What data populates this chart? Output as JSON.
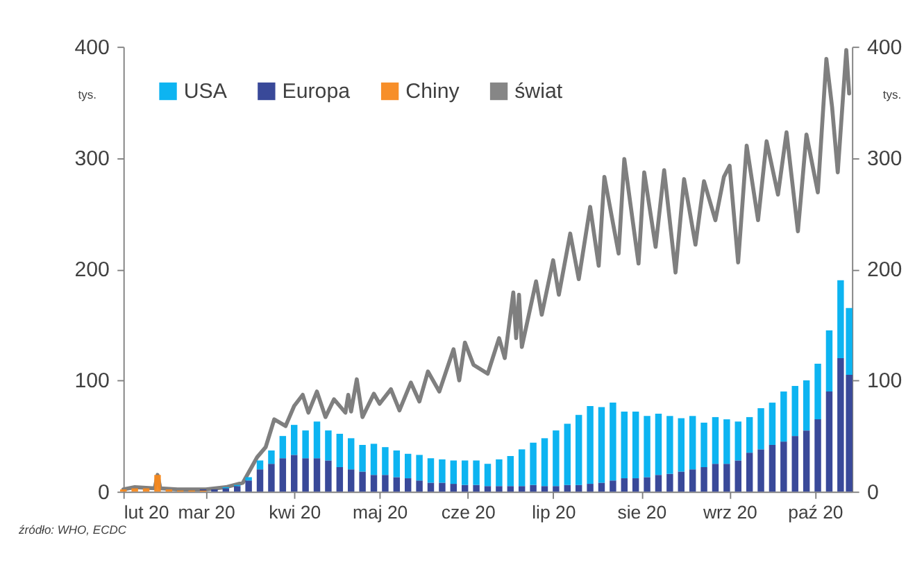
{
  "chart_data": {
    "type": "bar",
    "stacked": true,
    "ylabel": "tys.",
    "y2label": "tys.",
    "x": [
      "2020-02-01",
      "2020-02-05",
      "2020-02-09",
      "2020-02-13",
      "2020-02-17",
      "2020-02-21",
      "2020-02-25",
      "2020-02-29",
      "2020-03-04",
      "2020-03-08",
      "2020-03-12",
      "2020-03-16",
      "2020-03-20",
      "2020-03-24",
      "2020-03-28",
      "2020-04-01",
      "2020-04-05",
      "2020-04-09",
      "2020-04-13",
      "2020-04-17",
      "2020-04-21",
      "2020-04-25",
      "2020-04-29",
      "2020-05-03",
      "2020-05-07",
      "2020-05-11",
      "2020-05-15",
      "2020-05-19",
      "2020-05-23",
      "2020-05-27",
      "2020-05-31",
      "2020-06-04",
      "2020-06-08",
      "2020-06-12",
      "2020-06-16",
      "2020-06-20",
      "2020-06-24",
      "2020-06-28",
      "2020-07-02",
      "2020-07-06",
      "2020-07-10",
      "2020-07-14",
      "2020-07-18",
      "2020-07-22",
      "2020-07-26",
      "2020-07-30",
      "2020-08-03",
      "2020-08-07",
      "2020-08-11",
      "2020-08-15",
      "2020-08-19",
      "2020-08-23",
      "2020-08-27",
      "2020-08-31",
      "2020-09-04",
      "2020-09-08",
      "2020-09-12",
      "2020-09-16",
      "2020-09-20",
      "2020-09-24",
      "2020-09-28",
      "2020-10-02",
      "2020-10-06",
      "2020-10-10",
      "2020-10-13"
    ],
    "series": [
      {
        "name": "Chiny",
        "color": "#f7891f",
        "values": [
          2,
          3,
          3,
          15,
          2,
          1,
          1,
          1,
          null,
          null,
          null,
          null,
          null,
          null,
          null,
          null,
          null,
          null,
          null,
          null,
          null,
          null,
          null,
          null,
          null,
          null,
          null,
          null,
          null,
          null,
          null,
          null,
          null,
          null,
          null,
          null,
          null,
          null,
          null,
          null,
          null,
          null,
          null,
          null,
          null,
          null,
          null,
          null,
          null,
          null,
          null,
          null,
          null,
          null,
          null,
          null,
          null,
          null,
          null,
          null,
          null,
          null,
          null,
          null,
          null
        ]
      },
      {
        "name": "Europa",
        "color": "#2e3f93",
        "values": [
          0,
          0,
          0,
          0,
          0,
          0,
          0,
          1,
          2,
          3,
          5,
          10,
          20,
          25,
          30,
          33,
          30,
          30,
          28,
          22,
          20,
          18,
          15,
          15,
          13,
          12,
          10,
          8,
          8,
          7,
          6,
          6,
          5,
          5,
          5,
          5,
          6,
          5,
          5,
          6,
          6,
          7,
          8,
          10,
          12,
          12,
          13,
          15,
          16,
          18,
          20,
          22,
          25,
          25,
          28,
          35,
          38,
          42,
          45,
          50,
          55,
          65,
          90,
          120,
          105
        ]
      },
      {
        "name": "USA",
        "color": "#00b0f0",
        "values": [
          0,
          0,
          0,
          0,
          0,
          0,
          0,
          0,
          0,
          1,
          1,
          3,
          8,
          12,
          20,
          27,
          25,
          33,
          27,
          30,
          28,
          24,
          28,
          25,
          24,
          22,
          23,
          22,
          21,
          21,
          22,
          22,
          20,
          24,
          27,
          33,
          38,
          43,
          50,
          55,
          63,
          70,
          68,
          70,
          60,
          60,
          55,
          55,
          52,
          48,
          48,
          40,
          42,
          40,
          35,
          32,
          37,
          38,
          45,
          45,
          45,
          50,
          55,
          70,
          60
        ]
      },
      {
        "name": "świat",
        "type": "line",
        "axis": "y2",
        "color": "#7f7f7f",
        "x": [
          "2020-02-01",
          "2020-02-05",
          "2020-02-12",
          "2020-02-13",
          "2020-02-14",
          "2020-02-20",
          "2020-03-01",
          "2020-03-08",
          "2020-03-14",
          "2020-03-19",
          "2020-03-22",
          "2020-03-25",
          "2020-03-29",
          "2020-04-01",
          "2020-04-04",
          "2020-04-06",
          "2020-04-09",
          "2020-04-12",
          "2020-04-15",
          "2020-04-19",
          "2020-04-20",
          "2020-04-21",
          "2020-04-23",
          "2020-04-25",
          "2020-04-29",
          "2020-05-01",
          "2020-05-05",
          "2020-05-08",
          "2020-05-12",
          "2020-05-15",
          "2020-05-18",
          "2020-05-22",
          "2020-05-27",
          "2020-05-29",
          "2020-05-31",
          "2020-06-03",
          "2020-06-08",
          "2020-06-12",
          "2020-06-14",
          "2020-06-17",
          "2020-06-18",
          "2020-06-19",
          "2020-06-20",
          "2020-06-25",
          "2020-06-27",
          "2020-07-01",
          "2020-07-03",
          "2020-07-07",
          "2020-07-10",
          "2020-07-14",
          "2020-07-17",
          "2020-07-19",
          "2020-07-24",
          "2020-07-26",
          "2020-07-31",
          "2020-08-02",
          "2020-08-06",
          "2020-08-09",
          "2020-08-13",
          "2020-08-16",
          "2020-08-20",
          "2020-08-23",
          "2020-08-27",
          "2020-08-30",
          "2020-09-01",
          "2020-09-04",
          "2020-09-07",
          "2020-09-11",
          "2020-09-14",
          "2020-09-18",
          "2020-09-21",
          "2020-09-25",
          "2020-09-28",
          "2020-10-02",
          "2020-10-05",
          "2020-10-07",
          "2020-10-09",
          "2020-10-12",
          "2020-10-13"
        ],
        "values": [
          2,
          4,
          3,
          15,
          3,
          2,
          2,
          4,
          8,
          31,
          40,
          65,
          59,
          77,
          87,
          71,
          90,
          67,
          83,
          71,
          87,
          72,
          101,
          67,
          88,
          79,
          92,
          73,
          98,
          81,
          108,
          90,
          128,
          100,
          134,
          114,
          106,
          138,
          120,
          179,
          138,
          177,
          130,
          189,
          159,
          208,
          177,
          232,
          191,
          256,
          203,
          283,
          214,
          299,
          205,
          287,
          220,
          289,
          197,
          281,
          222,
          279,
          244,
          283,
          293,
          206,
          311,
          244,
          315,
          267,
          323,
          234,
          321,
          269,
          389,
          346,
          287,
          397,
          358
        ]
      }
    ],
    "xlim": [
      "2020-02-01",
      "2020-10-14"
    ],
    "xticks": [
      {
        "value": "2020-02-01",
        "label": "lut 20"
      },
      {
        "value": "2020-03-01",
        "label": "mar 20"
      },
      {
        "value": "2020-04-01",
        "label": "kwi 20"
      },
      {
        "value": "2020-05-01",
        "label": "maj 20"
      },
      {
        "value": "2020-06-01",
        "label": "cze 20"
      },
      {
        "value": "2020-07-01",
        "label": "lip 20"
      },
      {
        "value": "2020-08-01",
        "label": "sie 20"
      },
      {
        "value": "2020-09-01",
        "label": "wrz 20"
      },
      {
        "value": "2020-10-01",
        "label": "paź 20"
      }
    ],
    "ylim": [
      0,
      400
    ],
    "yticks": [
      0,
      100,
      200,
      300,
      400
    ],
    "y2lim": [
      0,
      400
    ],
    "y2ticks": [
      0,
      100,
      200,
      300,
      400
    ],
    "grid": false,
    "legend": "top left",
    "annotations": [
      "źródło: WHO, ECDC"
    ]
  }
}
